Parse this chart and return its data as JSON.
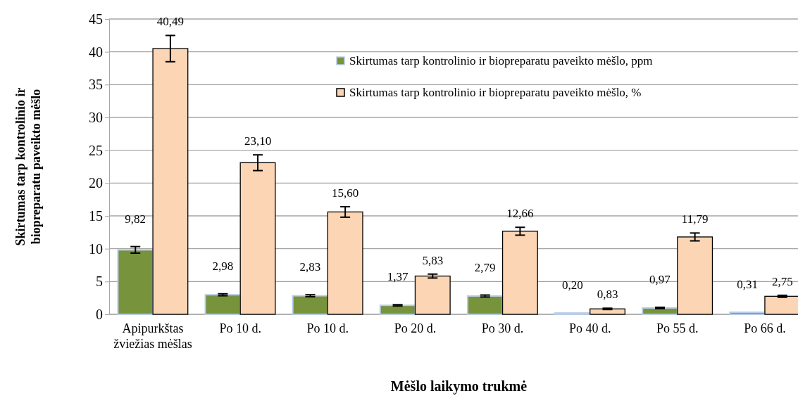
{
  "chart_data": {
    "type": "bar",
    "xlabel": "Mėšlo laikymo trukmė",
    "ylabel": "Skirtumas tarp kontrolinio ir biopreparatu paveikto mėšlo",
    "categories": [
      "Apipurkštas žviežias mėšlas",
      "Po 10 d.",
      "Po 10 d.",
      "Po 20 d.",
      "Po 30 d.",
      "Po 40 d.",
      "Po 55 d.",
      "Po 66 d."
    ],
    "series": [
      {
        "name": "Skirtumas tarp kontrolinio ir biopreparatu paveikto mėšlo, ppm",
        "color": "#77933c",
        "values": [
          9.82,
          2.98,
          2.83,
          1.37,
          2.79,
          0.2,
          0.97,
          0.31
        ],
        "errors": [
          0.5,
          0.15,
          0.15,
          0.1,
          0.15,
          null,
          0.1,
          null
        ],
        "value_labels": [
          "9,82",
          "2,98",
          "2,83",
          "1,37",
          "2,79",
          "0,20",
          "0,97",
          "0,31"
        ]
      },
      {
        "name": "Skirtumas tarp kontrolinio ir biopreparatu paveikto mėšlo, %",
        "color": "#fcd5b5",
        "values": [
          40.49,
          23.1,
          15.6,
          5.83,
          12.66,
          0.83,
          11.79,
          2.75
        ],
        "errors": [
          2,
          1.2,
          0.8,
          0.3,
          0.6,
          0.1,
          0.6,
          0.15
        ],
        "value_labels": [
          "40,49",
          "23,10",
          "15,60",
          "5,83",
          "12,66",
          "0,83",
          "11,79",
          "2,75"
        ]
      }
    ],
    "ylim": [
      0,
      45
    ],
    "yticks": [
      0,
      5,
      10,
      15,
      20,
      25,
      30,
      35,
      40,
      45
    ],
    "grid": "y",
    "legend": "top right"
  }
}
